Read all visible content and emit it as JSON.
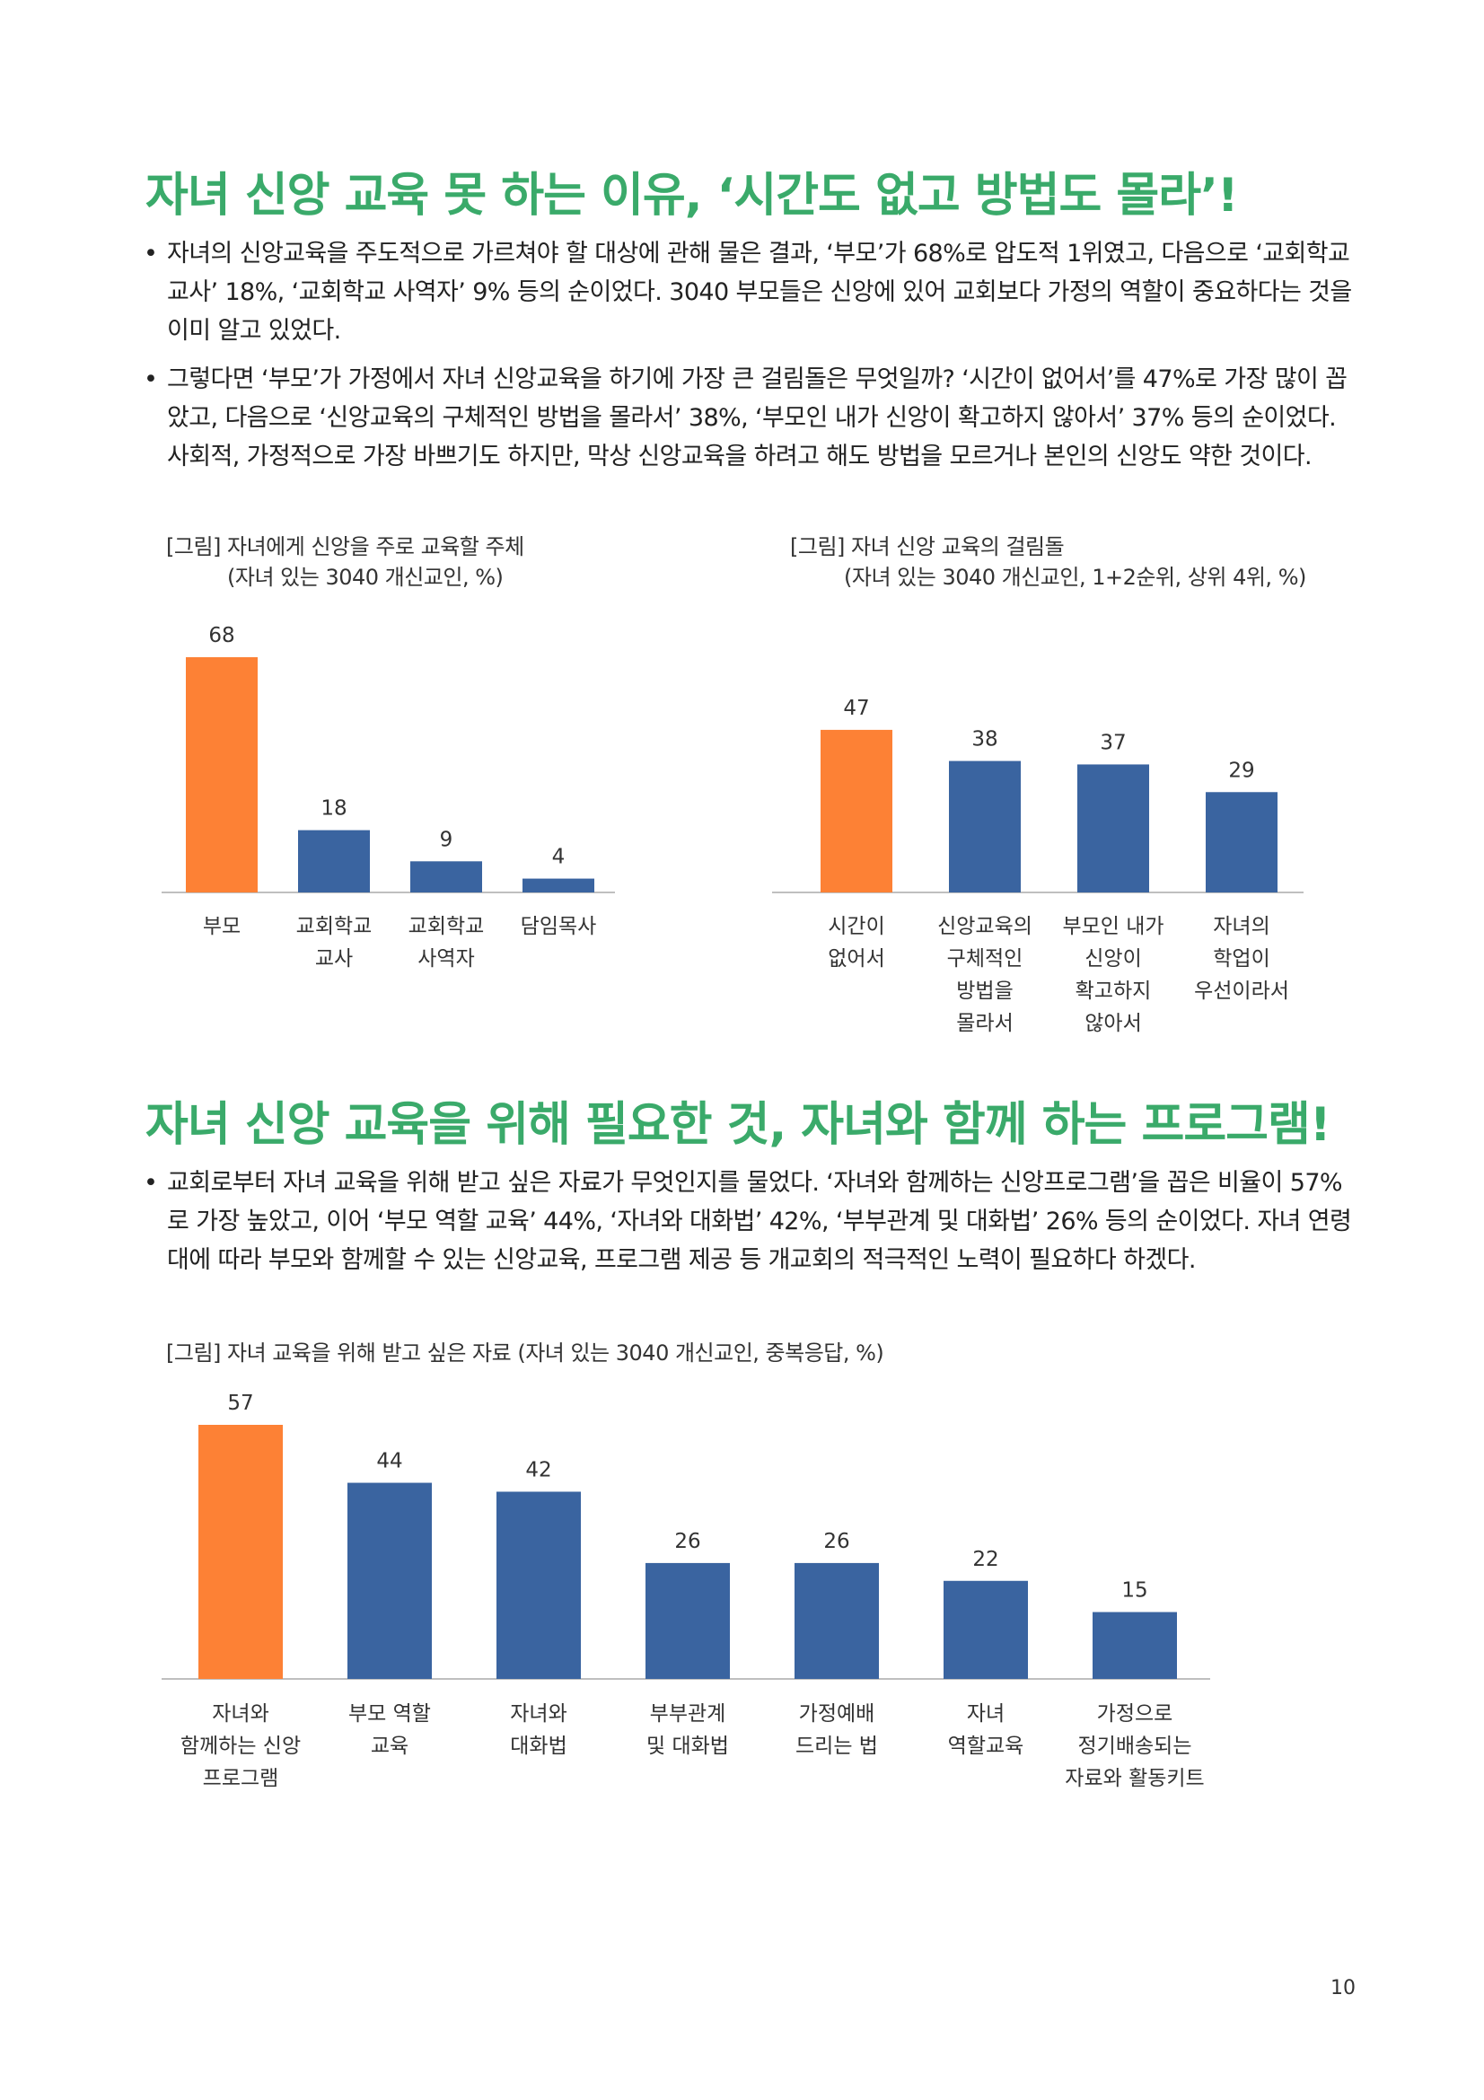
{
  "section1": {
    "heading": "자녀 신앙 교육 못 하는 이유, ‘시간도 없고 방법도 몰라’!",
    "bullets": [
      "자녀의 신앙교육을 주도적으로 가르쳐야 할 대상에 관해 물은 결과, ‘부모’가 68%로 압도적 1위였고, 다음으로 ‘교회학교 교사’ 18%, ‘교회학교 사역자’ 9% 등의 순이었다. 3040 부모들은 신앙에 있어 교회보다 가정의 역할이 중요하다는 것을 이미 알고 있었다.",
      "그렇다면 ‘부모’가 가정에서 자녀 신앙교육을 하기에 가장 큰 걸림돌은 무엇일까? ‘시간이 없어서’를 47%로 가장 많이 꼽았고, 다음으로 ‘신앙교육의 구체적인 방법을 몰라서’ 38%, ‘부모인 내가 신앙이 확고하지 않아서’ 37% 등의 순이었다. 사회적, 가정적으로 가장 바쁘기도 하지만, 막상 신앙교육을 하려고 해도 방법을 모르거나 본인의 신앙도 약한 것이다."
    ]
  },
  "section2": {
    "heading": "자녀 신앙 교육을 위해 필요한 것, 자녀와 함께 하는 프로그램!",
    "bullets": [
      "교회로부터 자녀 교육을 위해 받고 싶은 자료가 무엇인지를 물었다. ‘자녀와 함께하는 신앙프로그램’을 꼽은 비율이 57%로 가장 높았고, 이어 ‘부모 역할 교육’ 44%, ‘자녀와 대화법’ 42%, ‘부부관계 및 대화법’ 26% 등의 순이었다. 자녀 연령대에 따라 부모와 함께할 수 있는 신앙교육, 프로그램 제공 등 개교회의 적극적인 노력이 필요하다 하겠다."
    ]
  },
  "colors": {
    "heading": "#3aaa6a",
    "highlight": "#fd8135",
    "normal": "#3a64a0",
    "axis": "#bfbfbf"
  },
  "chart_data": [
    {
      "type": "bar",
      "title": "[그림] 자녀에게 신앙을 주로 교육할 주체",
      "subtitle": "(자녀 있는 3040 개신교인, %)",
      "categories": [
        "부모",
        "교회학교\n교사",
        "교회학교\n사역자",
        "담임목사"
      ],
      "values": [
        68,
        18,
        9,
        4
      ],
      "highlight_index": 0,
      "ylim": [
        0,
        68
      ],
      "grid": false
    },
    {
      "type": "bar",
      "title": "[그림] 자녀 신앙 교육의 걸림돌",
      "subtitle": "(자녀 있는 3040 개신교인, 1+2순위, 상위 4위, %)",
      "categories": [
        "시간이\n없어서",
        "신앙교육의\n구체적인\n방법을\n몰라서",
        "부모인 내가\n신앙이\n확고하지\n않아서",
        "자녀의\n학업이\n우선이라서"
      ],
      "values": [
        47,
        38,
        37,
        29
      ],
      "highlight_index": 0,
      "ylim": [
        0,
        68
      ],
      "grid": false
    },
    {
      "type": "bar",
      "title": "[그림] 자녀 교육을 위해 받고 싶은 자료 (자녀 있는 3040 개신교인, 중복응답, %)",
      "categories": [
        "자녀와\n함께하는 신앙\n프로그램",
        "부모 역할\n교육",
        "자녀와\n대화법",
        "부부관계\n및 대화법",
        "가정예배\n드리는 법",
        "자녀\n역할교육",
        "가정으로\n정기배송되는\n자료와 활동키트"
      ],
      "values": [
        57,
        44,
        42,
        26,
        26,
        22,
        15
      ],
      "highlight_index": 0,
      "ylim": [
        0,
        57
      ],
      "grid": false
    }
  ],
  "page_number": "10"
}
